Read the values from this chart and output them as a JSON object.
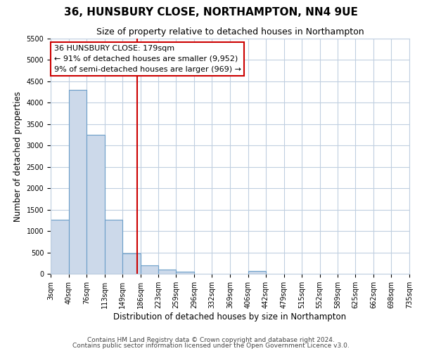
{
  "title": "36, HUNSBURY CLOSE, NORTHAMPTON, NN4 9UE",
  "subtitle": "Size of property relative to detached houses in Northampton",
  "xlabel": "Distribution of detached houses by size in Northampton",
  "ylabel": "Number of detached properties",
  "bin_edges": [
    3,
    40,
    76,
    113,
    149,
    186,
    223,
    259,
    296,
    332,
    369,
    406,
    442,
    479,
    515,
    552,
    589,
    625,
    662,
    698,
    735
  ],
  "bin_counts": [
    1270,
    4300,
    3250,
    1270,
    470,
    200,
    100,
    50,
    0,
    0,
    0,
    60,
    0,
    0,
    0,
    0,
    0,
    0,
    0,
    0
  ],
  "bar_color": "#ccd9ea",
  "bar_edge_color": "#6b9ec8",
  "property_line_x": 179,
  "annotation_title": "36 HUNSBURY CLOSE: 179sqm",
  "annotation_line1": "← 91% of detached houses are smaller (9,952)",
  "annotation_line2": "9% of semi-detached houses are larger (969) →",
  "annotation_box_color": "#ffffff",
  "annotation_box_edge_color": "#cc0000",
  "vline_color": "#cc0000",
  "ylim": [
    0,
    5500
  ],
  "yticks": [
    0,
    500,
    1000,
    1500,
    2000,
    2500,
    3000,
    3500,
    4000,
    4500,
    5000,
    5500
  ],
  "footer1": "Contains HM Land Registry data © Crown copyright and database right 2024.",
  "footer2": "Contains public sector information licensed under the Open Government Licence v3.0.",
  "bg_color": "#ffffff",
  "grid_color": "#c0cfe0",
  "title_fontsize": 11,
  "subtitle_fontsize": 9,
  "axis_label_fontsize": 8.5,
  "tick_fontsize": 7,
  "footer_fontsize": 6.5
}
